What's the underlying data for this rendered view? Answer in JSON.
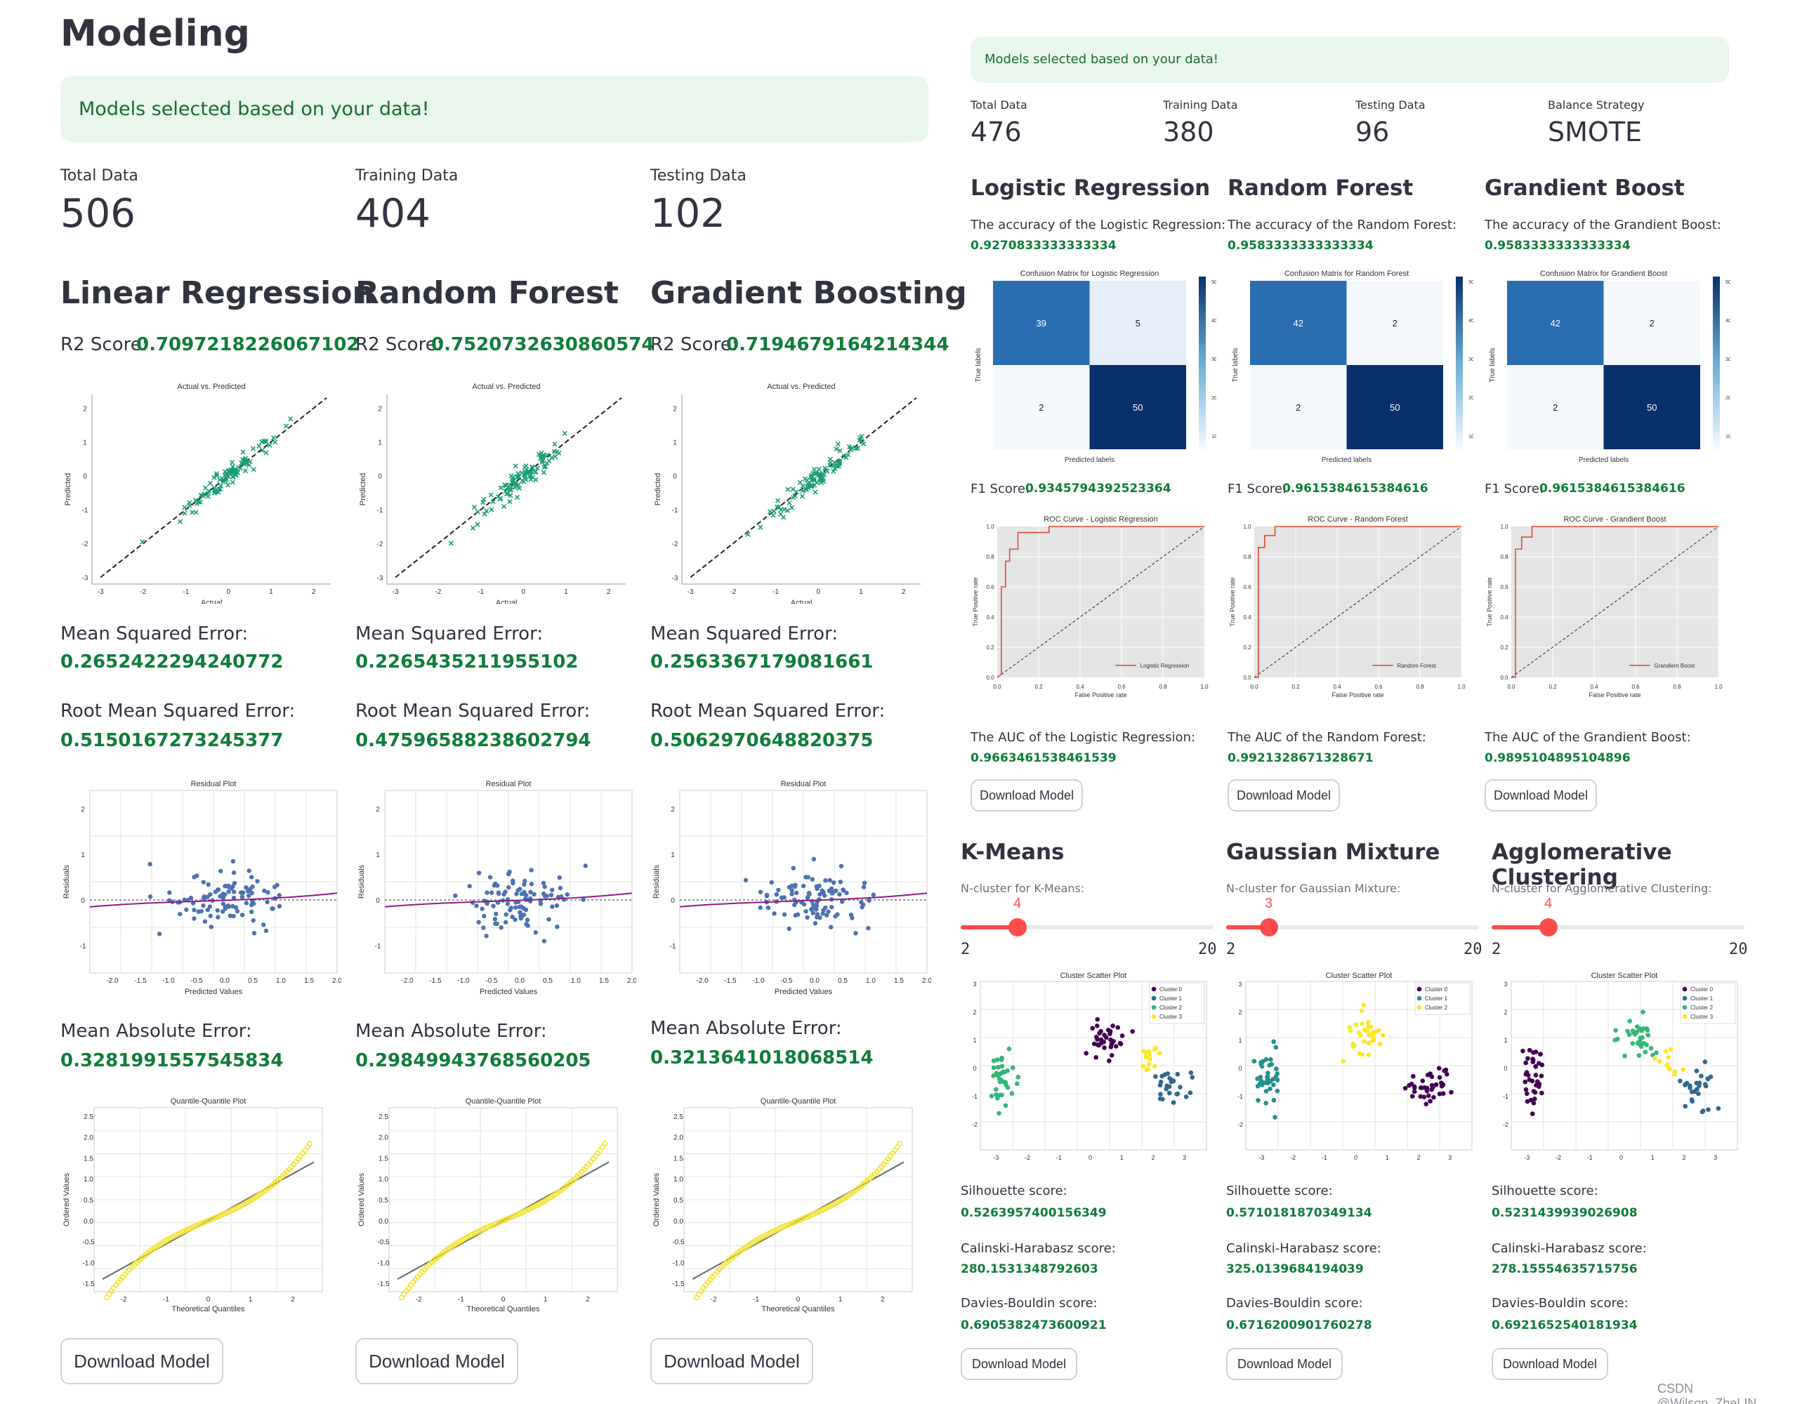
{
  "left": {
    "title": "Modeling",
    "alert": "Models selected based on your data!",
    "metrics": [
      {
        "label": "Total Data",
        "value": "506"
      },
      {
        "label": "Training Data",
        "value": "404"
      },
      {
        "label": "Testing Data",
        "value": "102"
      }
    ],
    "models": [
      {
        "title": "Linear Regression",
        "r2_label": "R2 Score:",
        "r2": "0.7097218226067102",
        "mse_label": "Mean Squared Error:",
        "mse": "0.2652422294240772",
        "rmse_label": "Root Mean Squared Error:",
        "rmse": "0.5150167273245377",
        "mae_label": "Mean Absolute Error:",
        "mae": "0.3281991557545834",
        "download": "Download Model"
      },
      {
        "title": "Random Forest",
        "r2_label": "R2 Score:",
        "r2": "0.7520732630860574",
        "mse_label": "Mean Squared Error:",
        "mse": "0.2265435211955102",
        "rmse_label": "Root Mean Squared Error:",
        "rmse": "0.47596588238602794",
        "mae_label": "Mean Absolute Error:",
        "mae": "0.29849943768560205",
        "download": "Download Model"
      },
      {
        "title": "Gradient Boosting",
        "r2_label": "R2 Score:",
        "r2": "0.7194679164214344",
        "mse_label": "Mean Squared Error:",
        "mse": "0.2563367179081661",
        "rmse_label": "Root Mean Squared Error:",
        "rmse": "0.5062970648820375",
        "mae_label": "Mean Absolute Error:",
        "mae": "0.3213641018068514",
        "download": "Download Model"
      }
    ]
  },
  "right": {
    "alert": "Models selected based on your data!",
    "metrics": [
      {
        "label": "Total Data",
        "value": "476"
      },
      {
        "label": "Training Data",
        "value": "380"
      },
      {
        "label": "Testing Data",
        "value": "96"
      },
      {
        "label": "Balance Strategy",
        "value": "SMOTE"
      }
    ],
    "classifiers": [
      {
        "title": "Logistic Regression",
        "acc_label": "The accuracy of the Logistic Regression:",
        "acc": "0.9270833333333334",
        "f1_label": "F1 Score:",
        "f1": "0.9345794392523364",
        "auc_label": "The AUC of the Logistic Regression:",
        "auc": "0.9663461538461539",
        "download": "Download Model"
      },
      {
        "title": "Random Forest",
        "acc_label": "The accuracy of the Random Forest:",
        "acc": "0.9583333333333334",
        "f1_label": "F1 Score:",
        "f1": "0.9615384615384616",
        "auc_label": "The AUC of the Random Forest:",
        "auc": "0.9921328671328671",
        "download": "Download Model"
      },
      {
        "title": "Grandient Boost",
        "acc_label": "The accuracy of the Grandient Boost:",
        "acc": "0.9583333333333334",
        "f1_label": "F1 Score:",
        "f1": "0.9615384615384616",
        "auc_label": "The AUC of the Grandient Boost:",
        "auc": "0.9895104895104896",
        "download": "Download Model"
      }
    ],
    "clusterers": [
      {
        "title": "K-Means",
        "ncl_label": "N-cluster for K-Means:",
        "value": 4,
        "min": 2,
        "max": 20,
        "sil_label": "Silhouette score:",
        "sil": "0.5263957400156349",
        "ch_label": "Calinski-Harabasz score:",
        "ch": "280.1531348792603",
        "db_label": "Davies-Bouldin score:",
        "db": "0.6905382473600921",
        "download": "Download Model"
      },
      {
        "title": "Gaussian Mixture",
        "ncl_label": "N-cluster for Gaussian Mixture:",
        "value": 3,
        "min": 2,
        "max": 20,
        "sil_label": "Silhouette score:",
        "sil": "0.5710181870349134",
        "ch_label": "Calinski-Harabasz score:",
        "ch": "325.0139684194039",
        "db_label": "Davies-Bouldin score:",
        "db": "0.6716200901760278",
        "download": "Download Model"
      },
      {
        "title": "Agglomerative Clustering",
        "ncl_label": "N-cluster for Agglomerative Clustering:",
        "value": 4,
        "min": 2,
        "max": 20,
        "sil_label": "Silhouette score:",
        "sil": "0.5231439939026908",
        "ch_label": "Calinski-Harabasz score:",
        "ch": "278.15554635715756",
        "db_label": "Davies-Bouldin score:",
        "db": "0.6921652540181934",
        "download": "Download Model"
      }
    ]
  },
  "watermark": "CSDN @Wilson_ZheLIN",
  "colors": {
    "green": "#0f7d3a",
    "alert_bg": "#e9f6ec",
    "accent": "#ff4b4b",
    "scatter_x": "#1a9e77",
    "residual": "#4c72b0",
    "qq": "#f2e230",
    "cm_dark": "#08306b",
    "roc_line": "#e24a33"
  },
  "chart_data": [
    {
      "type": "scatter",
      "title": "Actual vs. Predicted",
      "xlabel": "Actual",
      "ylabel": "Predicted",
      "xlim": [
        -3.2,
        2.4
      ],
      "ylim": [
        -3.2,
        2.4
      ],
      "x_ticks": [
        "-3",
        "-2",
        "-1",
        "0",
        "1",
        "2"
      ],
      "y_ticks": [
        "2",
        "1",
        "0",
        "-1",
        "-2",
        "-3"
      ]
    },
    {
      "type": "scatter",
      "title": "Residual Plot",
      "xlabel": "Predicted Values",
      "ylabel": "Residuals",
      "x_ticks": [
        "-2.0",
        "-1.5",
        "-1.0",
        "-0.5",
        "0.0",
        "0.5",
        "1.0",
        "1.5",
        "2.0"
      ],
      "y_ticks": [
        "2",
        "1",
        "0",
        "-1"
      ]
    },
    {
      "type": "scatter",
      "title": "Quantile-Quantile Plot",
      "xlabel": "Theoretical Quantiles",
      "ylabel": "Ordered Values",
      "x_ticks": [
        "-2",
        "-1",
        "0",
        "1",
        "2"
      ],
      "y_ticks": [
        "2.5",
        "2.0",
        "1.5",
        "1.0",
        "0.5",
        "0.0",
        "-0.5",
        "-1.0",
        "-1.5"
      ]
    },
    {
      "type": "heatmap",
      "titles": [
        "Confusion Matrix for Logistic Regression",
        "Confusion Matrix for Random Forest",
        "Confusion Matrix for Grandient Boost"
      ],
      "xlabel": "Predicted labels",
      "ylabel": "True labels",
      "matrices": [
        [
          [
            39,
            5
          ],
          [
            2,
            50
          ]
        ],
        [
          [
            42,
            2
          ],
          [
            2,
            50
          ]
        ],
        [
          [
            42,
            2
          ],
          [
            2,
            50
          ]
        ]
      ],
      "colorbar_ticks": [
        "50",
        "40",
        "30",
        "20",
        "10"
      ]
    },
    {
      "type": "line",
      "titles": [
        "ROC Curve - Logistic Regression",
        "ROC Curve - Random Forest",
        "ROC Curve - Grandient Boost"
      ],
      "legends": [
        "Logistic Regression",
        "Random Forest",
        "Grandient Boost"
      ],
      "xlabel": "False Positive rate",
      "ylabel": "True Positive rate",
      "xlim": [
        0,
        1
      ],
      "ylim": [
        0,
        1
      ],
      "ticks": [
        "0.0",
        "0.2",
        "0.4",
        "0.6",
        "0.8",
        "1.0"
      ]
    },
    {
      "type": "scatter",
      "title": "Cluster Scatter Plot",
      "xlim": [
        -3.5,
        3.7
      ],
      "ylim": [
        -2.9,
        3.1
      ],
      "x_ticks": [
        "-3",
        "-2",
        "-1",
        "0",
        "1",
        "2",
        "3"
      ],
      "y_ticks": [
        "3",
        "2",
        "1",
        "0",
        "-1",
        "-2"
      ],
      "legends": [
        [
          "Cluster 0",
          "Cluster 1",
          "Cluster 2",
          "Cluster 3"
        ],
        [
          "Cluster 0",
          "Cluster 1",
          "Cluster 2"
        ],
        [
          "Cluster 0",
          "Cluster 1",
          "Cluster 2",
          "Cluster 3"
        ]
      ],
      "palette4": [
        "#440154",
        "#31688e",
        "#35b779",
        "#fde725"
      ],
      "palette3": [
        "#440154",
        "#21918c",
        "#fde725"
      ]
    }
  ]
}
